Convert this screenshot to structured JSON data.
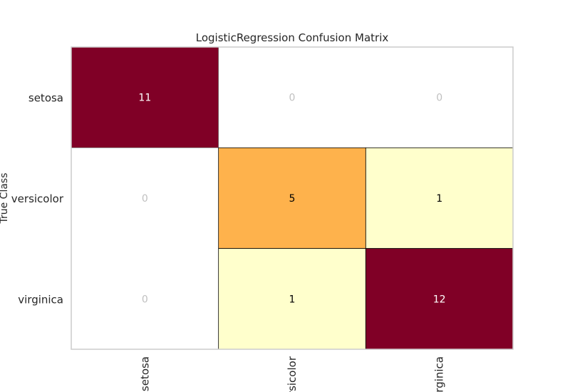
{
  "chart_data": {
    "type": "heatmap",
    "title": "LogisticRegression Confusion Matrix",
    "ylabel": "True Class",
    "xlabel": "",
    "rows": [
      "setosa",
      "versicolor",
      "virginica"
    ],
    "columns": [
      "setosa",
      "versicolor",
      "virginica"
    ],
    "values": [
      [
        11,
        0,
        0
      ],
      [
        0,
        5,
        1
      ],
      [
        0,
        1,
        12
      ]
    ],
    "colors": {
      "zero_cell": "#ffffff",
      "zero_text": "#c0c0c0",
      "low": "#ffffcc",
      "mid": "#feb24c",
      "high": "#800026",
      "dark_text": "#000000",
      "light_text": "#ffffff",
      "frame": "#cccccc"
    }
  }
}
